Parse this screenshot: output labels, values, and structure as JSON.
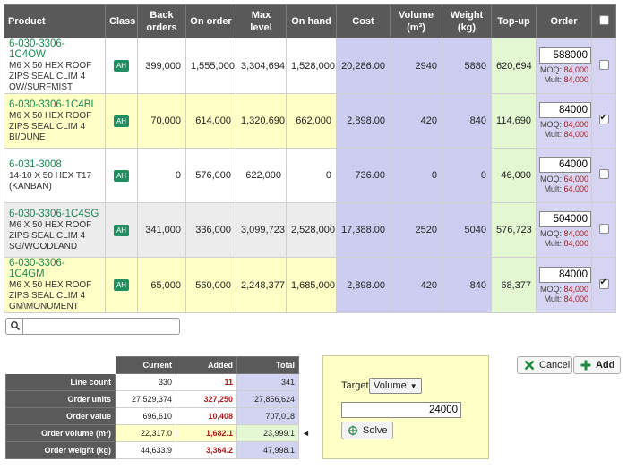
{
  "table": {
    "headers": {
      "product": "Product",
      "class": "Class",
      "back_orders": "Back orders",
      "on_order": "On order",
      "max_level": "Max level",
      "on_hand": "On hand",
      "cost": "Cost",
      "volume": "Volume (m³)",
      "weight": "Weight (kg)",
      "topup": "Top-up",
      "order": "Order"
    },
    "moq_label": "MOQ:",
    "mult_label": "Mult:",
    "rows": [
      {
        "code": "6-030-3306-1C4OW",
        "desc": "M6 X 50 HEX ROOF ZIPS SEAL CLIM 4 OW/SURFMIST",
        "class": "AH",
        "back_orders": "399,000",
        "on_order": "1,555,000",
        "max_level": "3,304,694",
        "on_hand": "1,528,000",
        "cost": "20,286.00",
        "volume": "2940",
        "weight": "5880",
        "topup": "620,694",
        "order": "588000",
        "moq": "84,000",
        "mult": "84,000",
        "checked": false,
        "style": "white"
      },
      {
        "code": "6-030-3306-1C4BI",
        "desc": "M6 X 50 HEX ROOF ZIPS SEAL CLIM 4 BI/DUNE",
        "class": "AH",
        "back_orders": "70,000",
        "on_order": "614,000",
        "max_level": "1,320,690",
        "on_hand": "662,000",
        "cost": "2,898.00",
        "volume": "420",
        "weight": "840",
        "topup": "114,690",
        "order": "84000",
        "moq": "84,000",
        "mult": "84,000",
        "checked": true,
        "style": "yellow"
      },
      {
        "code": "6-031-3008",
        "desc": "14-10 X 50 HEX T17 (KANBAN)",
        "class": "AH",
        "back_orders": "0",
        "on_order": "576,000",
        "max_level": "622,000",
        "on_hand": "0",
        "cost": "736.00",
        "volume": "0",
        "weight": "0",
        "topup": "46,000",
        "order": "64000",
        "moq": "64,000",
        "mult": "64,000",
        "checked": false,
        "style": "white"
      },
      {
        "code": "6-030-3306-1C4SG",
        "desc": "M6 X 50 HEX ROOF ZIPS SEAL CLIM 4 SG/WOODLAND",
        "class": "AH",
        "back_orders": "341,000",
        "on_order": "336,000",
        "max_level": "3,099,723",
        "on_hand": "2,528,000",
        "cost": "17,388.00",
        "volume": "2520",
        "weight": "5040",
        "topup": "576,723",
        "order": "504000",
        "moq": "84,000",
        "mult": "84,000",
        "checked": false,
        "style": "grey"
      },
      {
        "code": "6-030-3306-1C4GM",
        "desc": "M6 X 50 HEX ROOF ZIPS SEAL CLIM 4 GM\\MONUMENT",
        "class": "AH",
        "back_orders": "65,000",
        "on_order": "560,000",
        "max_level": "2,248,377",
        "on_hand": "1,685,000",
        "cost": "2,898.00",
        "volume": "420",
        "weight": "840",
        "topup": "68,377",
        "order": "84000",
        "moq": "84,000",
        "mult": "84,000",
        "checked": true,
        "style": "yellow"
      }
    ]
  },
  "search": {
    "value": "",
    "icon": "search-icon"
  },
  "summary": {
    "headers": {
      "current": "Current",
      "added": "Added",
      "total": "Total"
    },
    "rows": [
      {
        "label": "Line count",
        "current": "330",
        "added": "11",
        "total": "341"
      },
      {
        "label": "Order units",
        "current": "27,529,374",
        "added": "327,250",
        "total": "27,856,624"
      },
      {
        "label": "Order value",
        "current": "696,610",
        "added": "10,408",
        "total": "707,018"
      },
      {
        "label": "Order volume (m³)",
        "current": "22,317.0",
        "added": "1,682.1",
        "total": "23,999.1"
      },
      {
        "label": "Order weight (kg)",
        "current": "44,633.9",
        "added": "3,364.2",
        "total": "47,998.1"
      }
    ],
    "highlight_row": 3,
    "marker": "◄"
  },
  "solver": {
    "target_label": "Target",
    "target_option": "Volume",
    "target_value": "24000",
    "solve_label": "Solve"
  },
  "actions": {
    "cancel_label": "Cancel",
    "add_label": "Add"
  },
  "colors": {
    "header": "#595959",
    "code": "#1b8a56",
    "badge": "#1f8f5f",
    "added": "#a81c1c",
    "yellow": "#ffffc6",
    "lavender": "#cccdf1",
    "green": "#e3f7d2"
  }
}
